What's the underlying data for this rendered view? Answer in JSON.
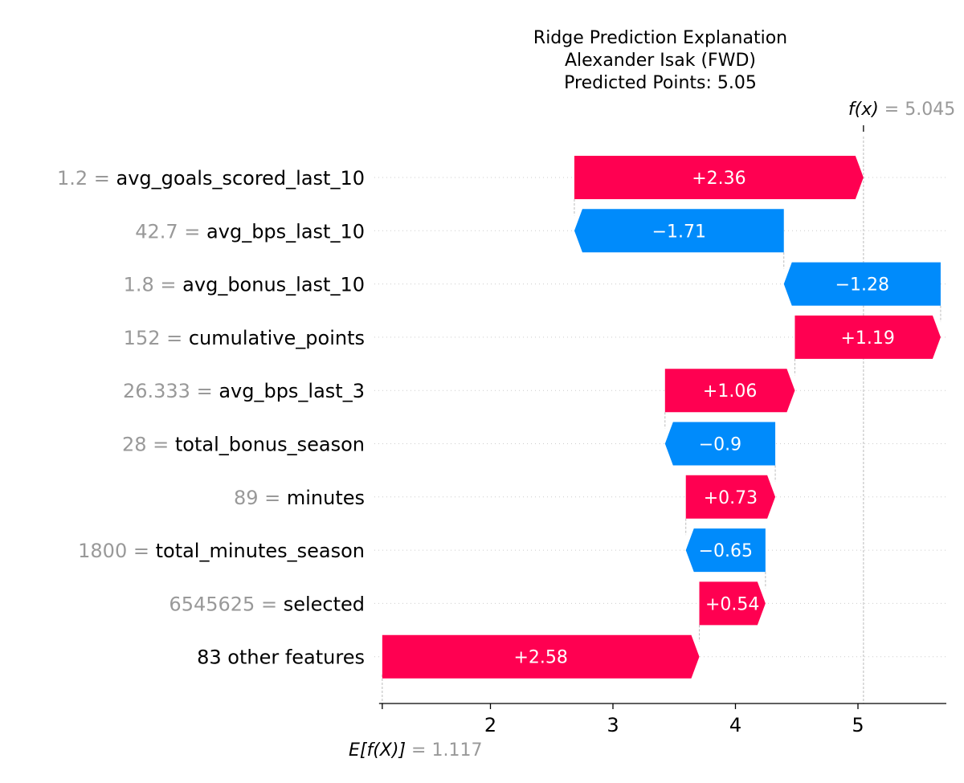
{
  "title_lines": [
    "Ridge Prediction Explanation",
    "Alexander Isak (FWD)",
    "Predicted Points: 5.05"
  ],
  "colors": {
    "positive": "#ff0051",
    "negative": "#008bfb",
    "muted": "#999999"
  },
  "chart_data": {
    "type": "waterfall",
    "title": "Ridge Prediction Explanation\nAlexander Isak (FWD)\nPredicted Points: 5.05",
    "base_value": 1.117,
    "base_label": "E[f(X)]",
    "base_value_text": "= 1.117",
    "output_value": 5.045,
    "output_label": "f(x)",
    "output_value_text": "= 5.045",
    "xlim": [
      1.117,
      5.72
    ],
    "xticks": [
      2,
      3,
      4,
      5
    ],
    "grid": "dotted horizontal per row",
    "features": [
      {
        "value_text": "1.2",
        "name": "avg_goals_scored_last_10",
        "contribution": 2.36,
        "label": "+2.36",
        "start": 2.685,
        "end": 5.045
      },
      {
        "value_text": "42.7",
        "name": "avg_bps_last_10",
        "contribution": -1.71,
        "label": "−1.71",
        "start": 4.395,
        "end": 2.685
      },
      {
        "value_text": "1.8",
        "name": "avg_bonus_last_10",
        "contribution": -1.28,
        "label": "−1.28",
        "start": 5.675,
        "end": 4.395
      },
      {
        "value_text": "152",
        "name": "cumulative_points",
        "contribution": 1.19,
        "label": "+1.19",
        "start": 4.485,
        "end": 5.675
      },
      {
        "value_text": "26.333",
        "name": "avg_bps_last_3",
        "contribution": 1.06,
        "label": "+1.06",
        "start": 3.425,
        "end": 4.485
      },
      {
        "value_text": "28",
        "name": "total_bonus_season",
        "contribution": -0.9,
        "label": "−0.9",
        "start": 4.325,
        "end": 3.425
      },
      {
        "value_text": "89",
        "name": "minutes",
        "contribution": 0.73,
        "label": "+0.73",
        "start": 3.595,
        "end": 4.325
      },
      {
        "value_text": "1800",
        "name": "total_minutes_season",
        "contribution": -0.65,
        "label": "−0.65",
        "start": 4.245,
        "end": 3.595
      },
      {
        "value_text": "6545625",
        "name": "selected",
        "contribution": 0.54,
        "label": "+0.54",
        "start": 3.705,
        "end": 4.245
      },
      {
        "value_text": "",
        "name": "83 other features",
        "contribution": 2.58,
        "label": "+2.58",
        "start": 1.117,
        "end": 3.705
      }
    ]
  }
}
